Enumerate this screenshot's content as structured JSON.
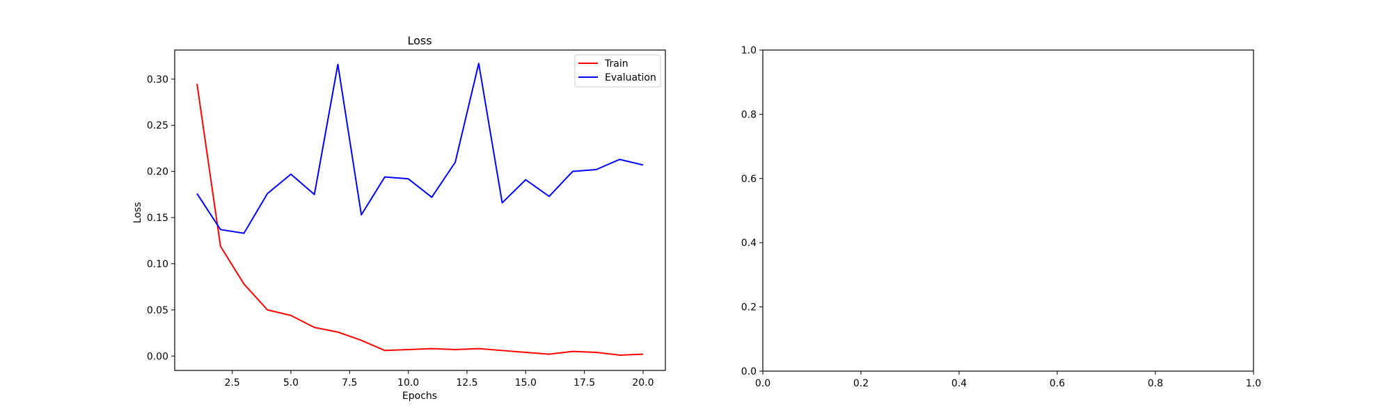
{
  "chart_data": [
    {
      "type": "line",
      "title": "Loss",
      "xlabel": "Epochs",
      "ylabel": "Loss",
      "xlim": [
        0.05,
        20.95
      ],
      "ylim": [
        -0.0156,
        0.3315
      ],
      "xticks": [
        2.5,
        5.0,
        7.5,
        10.0,
        12.5,
        15.0,
        17.5,
        20.0
      ],
      "xtick_labels": [
        "2.5",
        "5.0",
        "7.5",
        "10.0",
        "12.5",
        "15.0",
        "17.5",
        "20.0"
      ],
      "yticks": [
        0.0,
        0.05,
        0.1,
        0.15,
        0.2,
        0.25,
        0.3
      ],
      "ytick_labels": [
        "0.00",
        "0.05",
        "0.10",
        "0.15",
        "0.20",
        "0.25",
        "0.30"
      ],
      "grid": false,
      "legend": "top-right",
      "x": [
        1,
        2,
        3,
        4,
        5,
        6,
        7,
        8,
        9,
        10,
        11,
        12,
        13,
        14,
        15,
        16,
        17,
        18,
        19,
        20
      ],
      "series": [
        {
          "name": "Train",
          "color": "#ff0000",
          "values": [
            0.295,
            0.119,
            0.078,
            0.05,
            0.044,
            0.031,
            0.026,
            0.017,
            0.006,
            0.007,
            0.008,
            0.007,
            0.008,
            0.006,
            0.004,
            0.002,
            0.005,
            0.004,
            0.001,
            0.002
          ]
        },
        {
          "name": "Evaluation",
          "color": "#0000ff",
          "values": [
            0.176,
            0.137,
            0.133,
            0.176,
            0.197,
            0.175,
            0.316,
            0.153,
            0.194,
            0.192,
            0.172,
            0.21,
            0.317,
            0.166,
            0.191,
            0.173,
            0.2,
            0.202,
            0.213,
            0.207
          ]
        }
      ]
    },
    {
      "type": "line",
      "title": "",
      "xlabel": "",
      "ylabel": "",
      "xlim": [
        0.0,
        1.0
      ],
      "ylim": [
        0.0,
        1.0
      ],
      "xticks": [
        0.0,
        0.2,
        0.4,
        0.6,
        0.8,
        1.0
      ],
      "xtick_labels": [
        "0.0",
        "0.2",
        "0.4",
        "0.6",
        "0.8",
        "1.0"
      ],
      "yticks": [
        0.0,
        0.2,
        0.4,
        0.6,
        0.8,
        1.0
      ],
      "ytick_labels": [
        "0.0",
        "0.2",
        "0.4",
        "0.6",
        "0.8",
        "1.0"
      ],
      "grid": false,
      "series": []
    }
  ]
}
